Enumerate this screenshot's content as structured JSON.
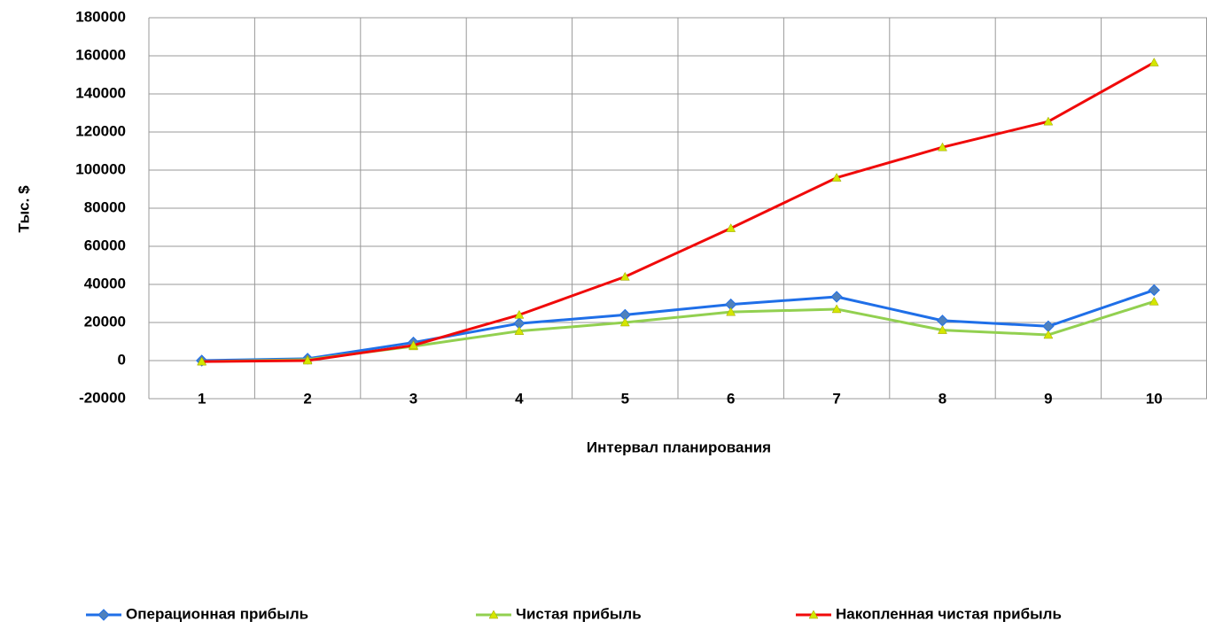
{
  "chart_data": {
    "type": "line",
    "x_label": "Интервал планирования",
    "y_label": "Тыс. $",
    "categories": [
      "1",
      "2",
      "3",
      "4",
      "5",
      "6",
      "7",
      "8",
      "9",
      "10"
    ],
    "series": [
      {
        "name": "Операционная прибыль",
        "color": "#1f6fe8",
        "marker": "diamond",
        "marker_color": "#4f81bd",
        "values": [
          0,
          1000,
          9500,
          19500,
          24000,
          29500,
          33500,
          21000,
          18000,
          37000
        ]
      },
      {
        "name": "Чистая прибыль",
        "color": "#92d050",
        "marker": "triangle",
        "marker_color": "#d4e600",
        "values": [
          -500,
          500,
          7500,
          15500,
          20000,
          25500,
          27000,
          16000,
          13500,
          31000
        ]
      },
      {
        "name": "Накопленная чистая прибыль",
        "color": "#f00a0a",
        "marker": "triangle",
        "marker_color": "#d4e600",
        "values": [
          -500,
          0,
          8000,
          24000,
          44000,
          69500,
          96000,
          112000,
          125500,
          156500
        ]
      }
    ],
    "ylim": [
      -20000,
      180000
    ],
    "yticks": [
      -20000,
      0,
      20000,
      40000,
      60000,
      80000,
      100000,
      120000,
      140000,
      160000,
      180000
    ],
    "grid": true,
    "legend": "bottom"
  }
}
